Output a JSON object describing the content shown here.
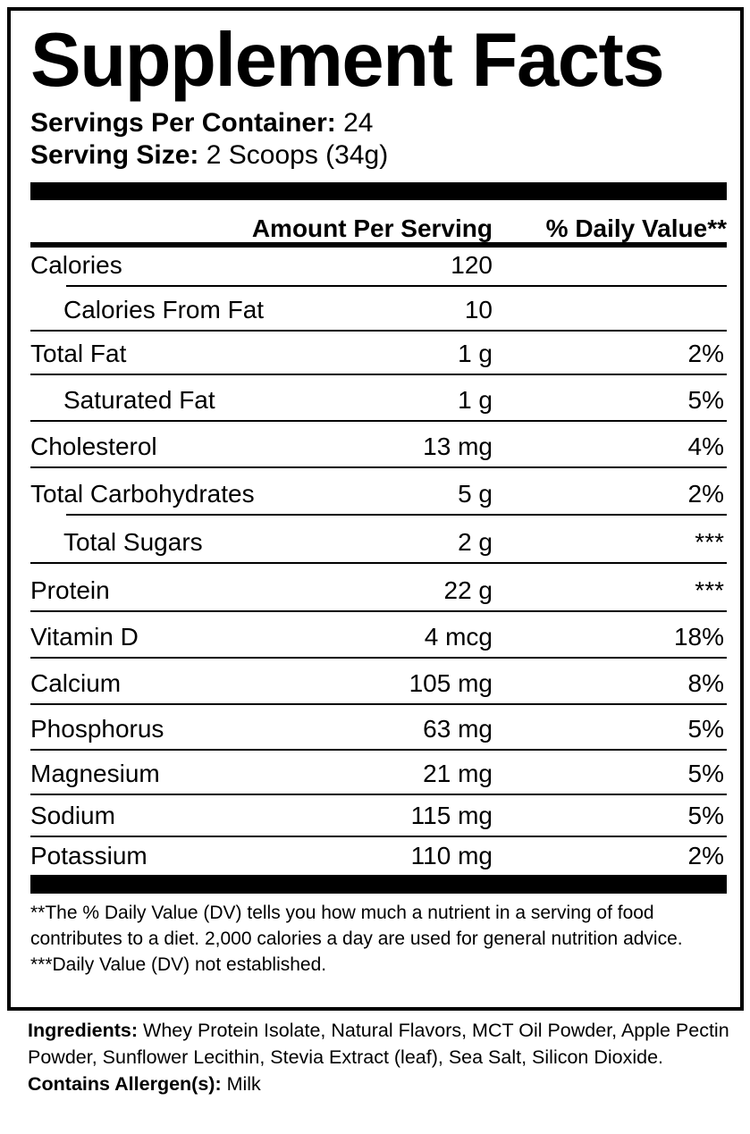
{
  "title": "Supplement Facts",
  "servings_per_container": {
    "label": "Servings Per Container:",
    "value": "24"
  },
  "serving_size": {
    "label": "Serving Size:",
    "value": "2 Scoops (34g)"
  },
  "header": {
    "amount": "Amount Per Serving",
    "dv": "% Daily Value**"
  },
  "rows": [
    {
      "name": "Calories",
      "amount": "120",
      "dv": ""
    },
    {
      "name": "Calories From Fat",
      "amount": "10",
      "dv": ""
    },
    {
      "name": "Total Fat",
      "amount": "1 g",
      "dv": "2%"
    },
    {
      "name": "Saturated Fat",
      "amount": "1 g",
      "dv": "5%"
    },
    {
      "name": "Cholesterol",
      "amount": "13 mg",
      "dv": "4%"
    },
    {
      "name": "Total Carbohydrates",
      "amount": "5 g",
      "dv": "2%"
    },
    {
      "name": "Total Sugars",
      "amount": "2 g",
      "dv": "***"
    },
    {
      "name": "Protein",
      "amount": "22 g",
      "dv": "***"
    },
    {
      "name": "Vitamin D",
      "amount": "4 mcg",
      "dv": "18%"
    },
    {
      "name": "Calcium",
      "amount": "105 mg",
      "dv": "8%"
    },
    {
      "name": "Phosphorus",
      "amount": "63 mg",
      "dv": "5%"
    },
    {
      "name": "Magnesium",
      "amount": "21 mg",
      "dv": "5%"
    },
    {
      "name": "Sodium",
      "amount": "115 mg",
      "dv": "5%"
    },
    {
      "name": "Potassium",
      "amount": "110 mg",
      "dv": "2%"
    }
  ],
  "footnotes": [
    "**The % Daily Value (DV) tells you how much a nutrient in a serving of food contributes to a diet. 2,000 calories a day are used for general nutrition advice.",
    "***Daily Value (DV) not established."
  ],
  "ingredients": {
    "label": "Ingredients:",
    "value": "Whey Protein Isolate, Natural Flavors, MCT Oil Powder, Apple Pectin Powder, Sunflower Lecithin, Stevia Extract (leaf), Sea Salt, Silicon Dioxide."
  },
  "allergens": {
    "label": "Contains Allergen(s):",
    "value": "Milk"
  }
}
